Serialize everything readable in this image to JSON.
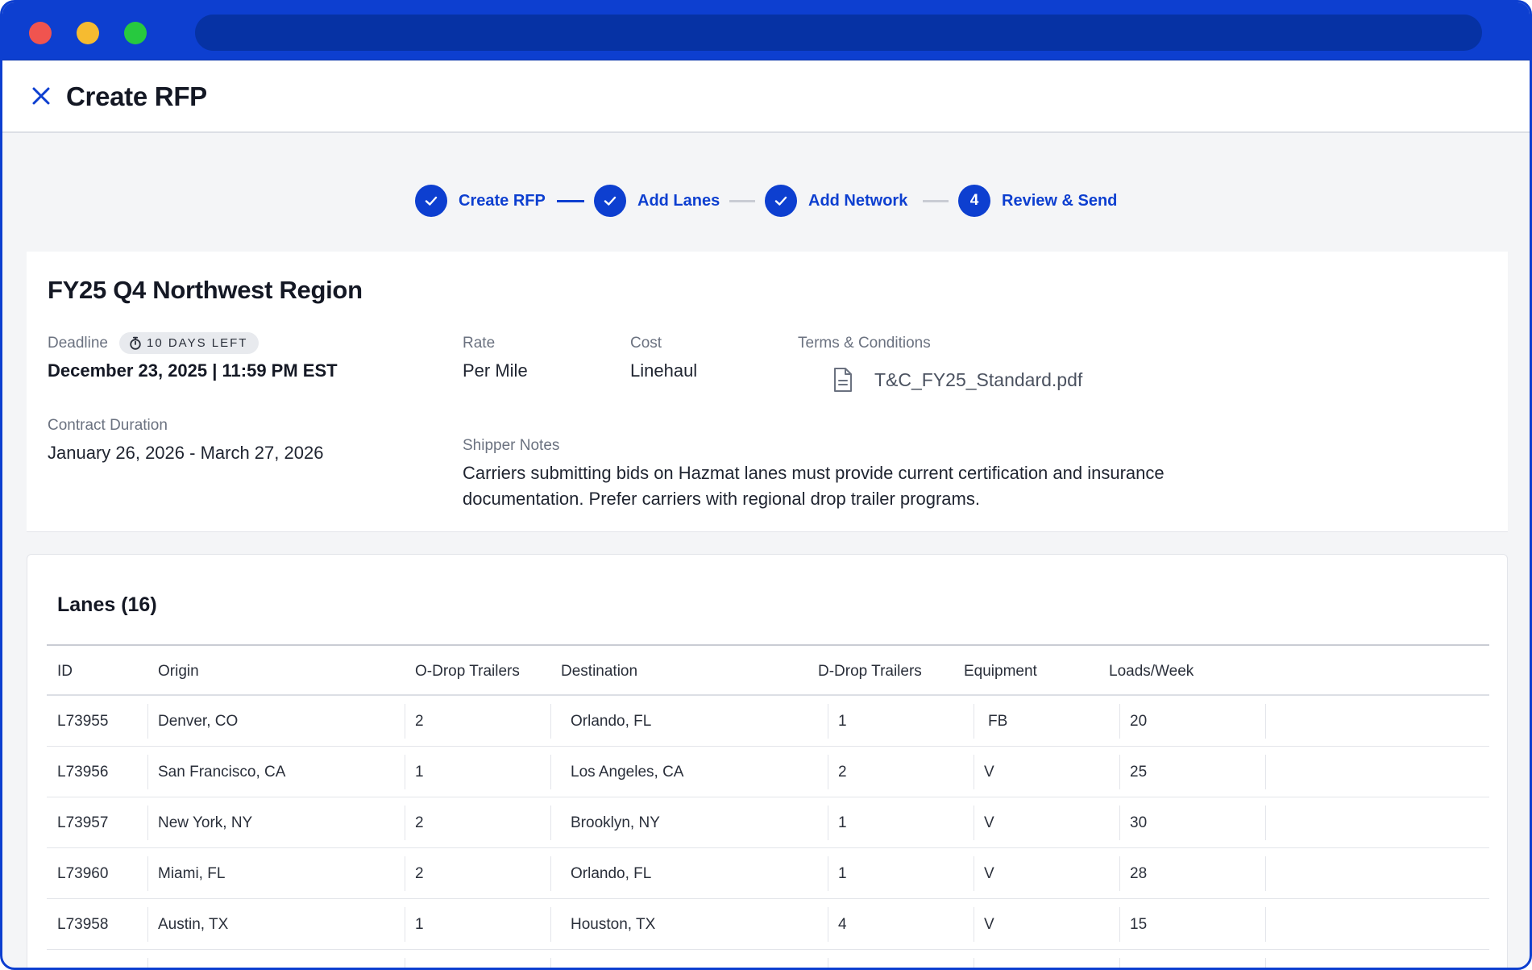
{
  "window": {
    "title": ""
  },
  "header": {
    "title": "Create RFP"
  },
  "stepper": {
    "steps": [
      {
        "label": "Create RFP",
        "state": "complete",
        "marker": ""
      },
      {
        "label": "Add Lanes",
        "state": "complete",
        "marker": ""
      },
      {
        "label": "Add Network",
        "state": "complete",
        "marker": ""
      },
      {
        "label": "Review & Send",
        "state": "current",
        "marker": "4"
      }
    ]
  },
  "summary": {
    "title": "FY25 Q4 Northwest Region",
    "deadline": {
      "label": "Deadline",
      "badge": "10 DAYS LEFT",
      "value": "December 23, 2025 | 11:59 PM EST"
    },
    "contract_duration": {
      "label": "Contract Duration",
      "value": "January 26, 2026 - March 27, 2026"
    },
    "rate": {
      "label": "Rate",
      "value": "Per Mile"
    },
    "cost": {
      "label": "Cost",
      "value": "Linehaul"
    },
    "terms": {
      "label": "Terms & Conditions",
      "file": "T&C_FY25_Standard.pdf"
    },
    "notes": {
      "label": "Shipper Notes",
      "text": "Carriers submitting bids on Hazmat lanes must provide current certification and insurance documentation. Prefer carriers with regional drop trailer programs."
    }
  },
  "lanes": {
    "title": "Lanes (16)",
    "columns": [
      "ID",
      "Origin",
      "O-Drop Trailers",
      "Destination",
      "D-Drop Trailers",
      "Equipment",
      "Loads/Week"
    ],
    "rows": [
      {
        "id": "L73955",
        "origin": "Denver, CO",
        "o_drop": "2",
        "destination": "Orlando, FL",
        "d_drop": "1",
        "equipment": "FB",
        "loads": "20"
      },
      {
        "id": "L73956",
        "origin": "San Francisco, CA",
        "o_drop": "1",
        "destination": "Los Angeles, CA",
        "d_drop": "2",
        "equipment": "V",
        "loads": "25"
      },
      {
        "id": "L73957",
        "origin": "New York, NY",
        "o_drop": "2",
        "destination": "Brooklyn, NY",
        "d_drop": "1",
        "equipment": "V",
        "loads": "30"
      },
      {
        "id": "L73960",
        "origin": "Miami, FL",
        "o_drop": "2",
        "destination": "Orlando, FL",
        "d_drop": "1",
        "equipment": "V",
        "loads": "28"
      },
      {
        "id": "L73958",
        "origin": "Austin, TX",
        "o_drop": "1",
        "destination": "Houston, TX",
        "d_drop": "4",
        "equipment": "V",
        "loads": "15"
      }
    ]
  },
  "icons": {
    "close": "close-icon",
    "check": "check-icon",
    "stopwatch": "stopwatch-icon",
    "document": "document-icon"
  },
  "colors": {
    "brand": "#0d3fd0",
    "muted_line": "#c9ccd4",
    "page_bg": "#f4f5f7"
  }
}
